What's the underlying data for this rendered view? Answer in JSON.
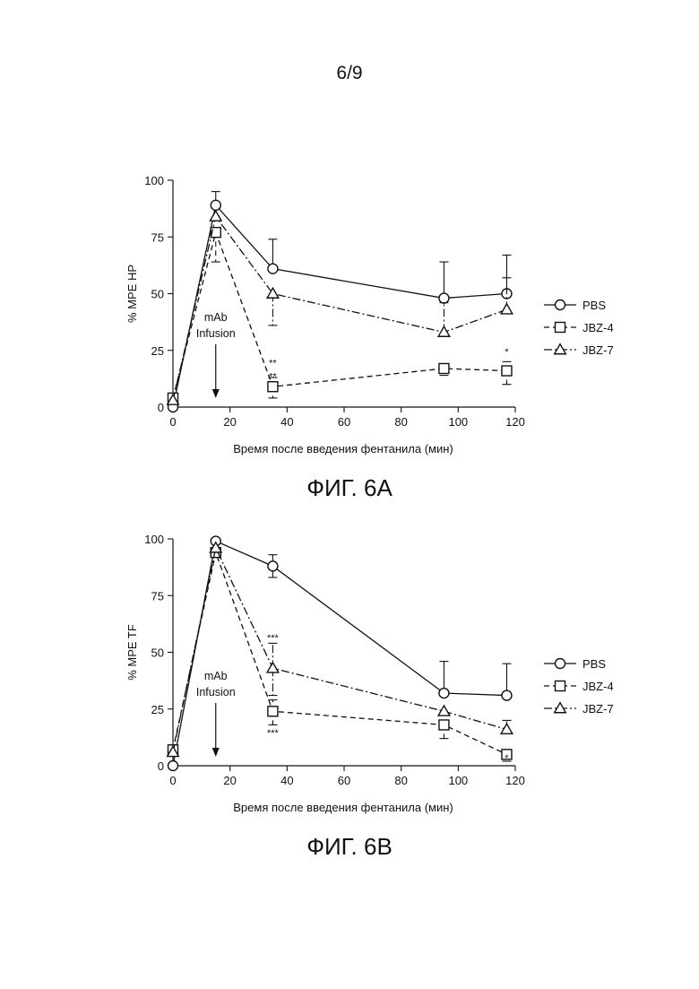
{
  "page": {
    "number": "6/9"
  },
  "chart_data": [
    {
      "id": "6A",
      "type": "line",
      "figure_label": "ФИГ. 6A",
      "xlabel": "Время после введения фентанила (мин)",
      "ylabel": "% MPE HP",
      "xlim": [
        0,
        120
      ],
      "ylim": [
        0,
        100
      ],
      "x_ticks": [
        0,
        20,
        40,
        60,
        80,
        100,
        120
      ],
      "y_ticks": [
        0,
        25,
        50,
        75,
        100
      ],
      "grid": false,
      "legend_position": "right",
      "annotation": {
        "lines": [
          "mAb",
          "Infusion"
        ],
        "arrow_x": 15
      },
      "series": [
        {
          "name": "PBS",
          "marker": "circle",
          "dash": "solid",
          "x": [
            0,
            15,
            35,
            95,
            117
          ],
          "y": [
            0,
            89,
            61,
            48,
            50
          ],
          "err_up": [
            0,
            6,
            13,
            16,
            17
          ],
          "err_down": [
            0,
            0,
            0,
            0,
            0
          ]
        },
        {
          "name": "JBZ-4",
          "marker": "square",
          "dash": "dashed",
          "x": [
            0,
            15,
            35,
            95,
            117
          ],
          "y": [
            4,
            77,
            9,
            17,
            16
          ],
          "err_up": [
            0,
            0,
            4,
            2,
            4
          ],
          "err_down": [
            0,
            13,
            5,
            3,
            6
          ]
        },
        {
          "name": "JBZ-7",
          "marker": "triangle",
          "dash": "dashdot",
          "x": [
            0,
            15,
            35,
            95,
            117
          ],
          "y": [
            3,
            84,
            50,
            33,
            43
          ],
          "err_up": [
            0,
            0,
            0,
            13,
            14
          ],
          "err_down": [
            0,
            0,
            14,
            0,
            0
          ]
        }
      ],
      "significance": [
        {
          "x": 35,
          "y": 12,
          "text": "**",
          "pos": "above"
        },
        {
          "x": 35,
          "y": 18,
          "text": "**",
          "pos": "above"
        },
        {
          "x": 117,
          "y": 23,
          "text": "*",
          "pos": "above"
        }
      ]
    },
    {
      "id": "6B",
      "type": "line",
      "figure_label": "ФИГ. 6B",
      "xlabel": "Время после введения фентанила (мин)",
      "ylabel": "% MPE TF",
      "xlim": [
        0,
        120
      ],
      "ylim": [
        0,
        100
      ],
      "x_ticks": [
        0,
        20,
        40,
        60,
        80,
        100,
        120
      ],
      "y_ticks": [
        0,
        25,
        50,
        75,
        100
      ],
      "grid": false,
      "legend_position": "right",
      "annotation": {
        "lines": [
          "mAb",
          "Infusion"
        ],
        "arrow_x": 15
      },
      "series": [
        {
          "name": "PBS",
          "marker": "circle",
          "dash": "solid",
          "x": [
            0,
            15,
            35,
            95,
            117
          ],
          "y": [
            0,
            99,
            88,
            32,
            31
          ],
          "err_up": [
            0,
            0,
            5,
            14,
            14
          ],
          "err_down": [
            0,
            0,
            5,
            0,
            0
          ]
        },
        {
          "name": "JBZ-4",
          "marker": "square",
          "dash": "dashed",
          "x": [
            0,
            15,
            35,
            95,
            117
          ],
          "y": [
            7,
            94,
            24,
            18,
            5
          ],
          "err_up": [
            0,
            0,
            5,
            2,
            2
          ],
          "err_down": [
            0,
            0,
            6,
            6,
            3
          ]
        },
        {
          "name": "JBZ-7",
          "marker": "triangle",
          "dash": "dashdot",
          "x": [
            0,
            15,
            35,
            95,
            117
          ],
          "y": [
            6,
            96,
            43,
            24,
            16
          ],
          "err_up": [
            0,
            0,
            11,
            0,
            4
          ],
          "err_down": [
            0,
            0,
            12,
            0,
            0
          ]
        }
      ],
      "significance": [
        {
          "x": 35,
          "y": 55,
          "text": "***",
          "pos": "above"
        },
        {
          "x": 35,
          "y": 17,
          "text": "***",
          "pos": "below"
        },
        {
          "x": 117,
          "y": 2,
          "text": "*",
          "pos": "above"
        }
      ]
    }
  ]
}
